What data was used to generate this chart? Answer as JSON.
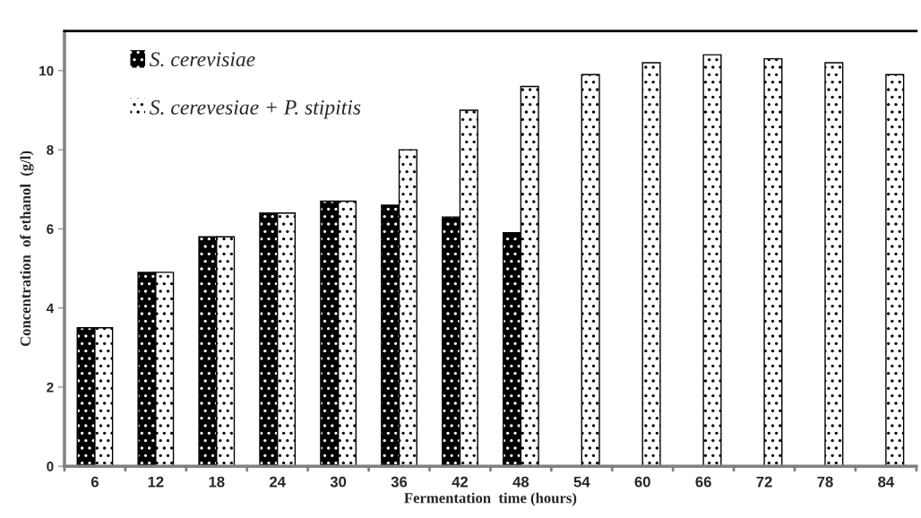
{
  "chart_data": {
    "type": "bar",
    "xlabel": "Fermentation  time (hours)",
    "ylabel": "Concentration  of ethanol  (g/l)",
    "categories": [
      "6",
      "12",
      "18",
      "24",
      "30",
      "36",
      "42",
      "48",
      "54",
      "60",
      "66",
      "72",
      "78",
      "84"
    ],
    "series": [
      {
        "name": "S. cerevisiae",
        "color": "#000000",
        "values": [
          3.5,
          4.9,
          5.8,
          6.4,
          6.7,
          6.6,
          6.3,
          5.9,
          null,
          null,
          null,
          null,
          null,
          null
        ]
      },
      {
        "name": "S. cerevesiae + P. stipitis",
        "color": "#ffffff",
        "values": [
          3.5,
          4.9,
          5.8,
          6.4,
          6.7,
          8.0,
          9.0,
          9.6,
          9.9,
          10.2,
          10.4,
          10.3,
          10.2,
          9.9
        ]
      }
    ],
    "ylim": [
      0,
      11
    ],
    "yticks": [
      0,
      2,
      4,
      6,
      8,
      10
    ],
    "grid": false,
    "legend": "top left"
  }
}
